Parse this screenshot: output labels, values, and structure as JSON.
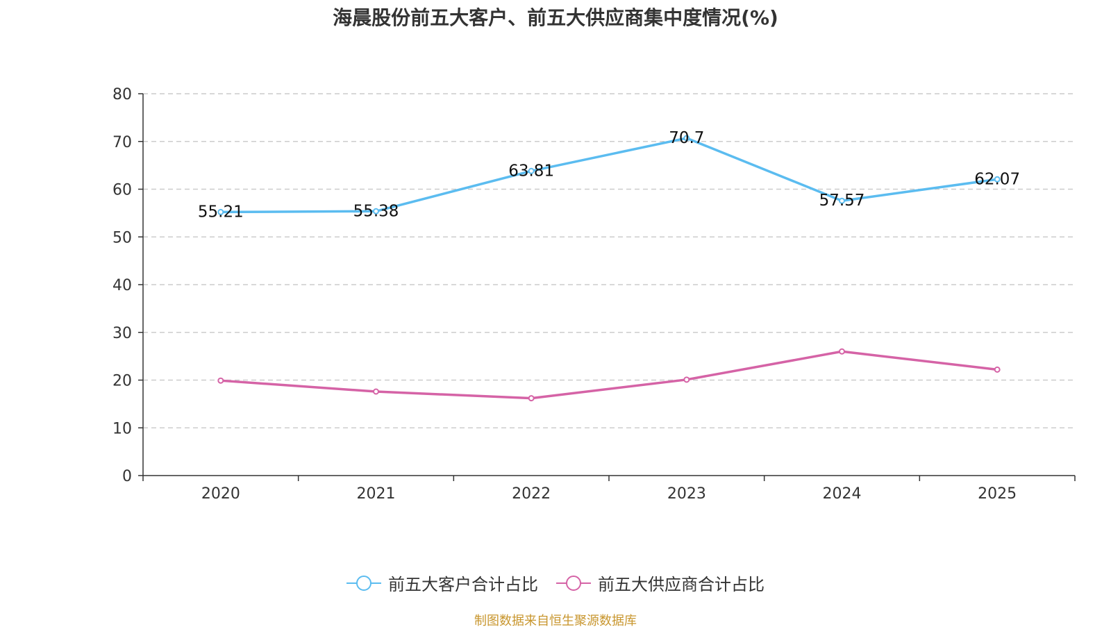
{
  "title": "海晨股份前五大客户、前五大供应商集中度情况(%)",
  "source": "制图数据来自恒生聚源数据库",
  "colors": {
    "customers": "#5bbcf0",
    "suppliers": "#d563a6",
    "axis": "#333333",
    "grid": "#cccccc"
  },
  "chart_data": {
    "type": "line",
    "title": "海晨股份前五大客户、前五大供应商集中度情况(%)",
    "categories": [
      "2020",
      "2021",
      "2022",
      "2023",
      "2024",
      "2025"
    ],
    "ylim": [
      0,
      80
    ],
    "yticks": [
      "0",
      "10",
      "20",
      "30",
      "40",
      "50",
      "60",
      "70",
      "80"
    ],
    "grid": true,
    "legend_position": "bottom-center",
    "series": [
      {
        "name": "前五大客户合计占比",
        "key": "customers",
        "values": [
          55.21,
          55.38,
          63.81,
          70.7,
          57.57,
          62.07
        ],
        "labels": [
          "55.21",
          "55.38",
          "63.81",
          "70.7",
          "57.57",
          "62.07"
        ],
        "show_labels": true
      },
      {
        "name": "前五大供应商合计占比",
        "key": "suppliers",
        "values": [
          19.9,
          17.6,
          16.2,
          20.1,
          26.0,
          22.2
        ],
        "show_labels": false
      }
    ]
  }
}
